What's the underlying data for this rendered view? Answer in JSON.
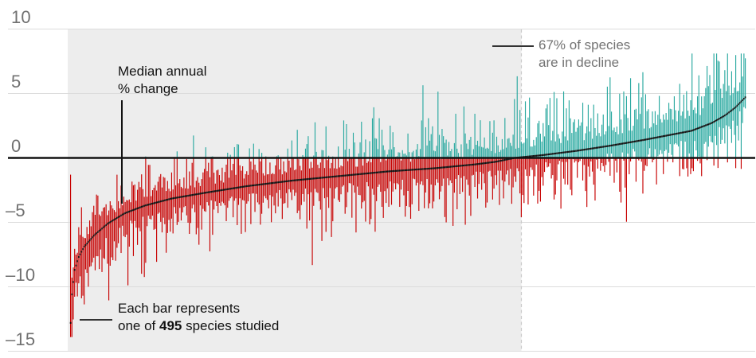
{
  "page": {
    "background": "#ffffff"
  },
  "chart_data": {
    "type": "bar",
    "n_species": 495,
    "pct_in_decline": 67,
    "y_range": [
      -15,
      10
    ],
    "y_ticks": [
      {
        "v": 10,
        "label": "10"
      },
      {
        "v": 5,
        "label": "5"
      },
      {
        "v": 0,
        "label": "0"
      },
      {
        "v": -5,
        "label": "–5"
      },
      {
        "v": -10,
        "label": "–10"
      },
      {
        "v": -15,
        "label": "–15"
      }
    ],
    "median_curve_keypoints": [
      [
        0.0,
        -12.8
      ],
      [
        0.002,
        -10.6
      ],
      [
        0.006,
        -8.7
      ],
      [
        0.012,
        -7.7
      ],
      [
        0.02,
        -6.9
      ],
      [
        0.035,
        -6.0
      ],
      [
        0.055,
        -5.1
      ],
      [
        0.08,
        -4.3
      ],
      [
        0.11,
        -3.7
      ],
      [
        0.15,
        -3.15
      ],
      [
        0.2,
        -2.7
      ],
      [
        0.26,
        -2.2
      ],
      [
        0.33,
        -1.75
      ],
      [
        0.4,
        -1.4
      ],
      [
        0.47,
        -1.05
      ],
      [
        0.54,
        -0.8
      ],
      [
        0.6,
        -0.5
      ],
      [
        0.63,
        -0.3
      ],
      [
        0.658,
        0.0
      ],
      [
        0.7,
        0.22
      ],
      [
        0.75,
        0.55
      ],
      [
        0.8,
        0.95
      ],
      [
        0.85,
        1.4
      ],
      [
        0.89,
        1.8
      ],
      [
        0.92,
        2.1
      ],
      [
        0.95,
        2.7
      ],
      [
        0.97,
        3.3
      ],
      [
        0.985,
        3.9
      ],
      [
        1.0,
        4.7
      ]
    ],
    "ci_width_profile": {
      "lower": [
        [
          0,
          1.55
        ],
        [
          0.04,
          1.4
        ],
        [
          0.12,
          1.15
        ],
        [
          0.3,
          1.0
        ],
        [
          0.6,
          0.95
        ],
        [
          0.85,
          0.9
        ],
        [
          1,
          1.05
        ]
      ],
      "upper": [
        [
          0,
          0.85
        ],
        [
          0.15,
          0.9
        ],
        [
          0.45,
          1.0
        ],
        [
          0.75,
          1.15
        ],
        [
          0.9,
          1.35
        ],
        [
          1,
          1.6
        ]
      ]
    },
    "first_species": {
      "median": -12.8,
      "lo": -13.9,
      "hi": -1.3
    },
    "extremes": {
      "max_bar_top": 8.1,
      "min_bar_bottom": -13.9
    },
    "colors": {
      "increase_teal": "#2aa9a0",
      "decline_red": "#c70000",
      "median_black": "#121212",
      "zero_line": "#121212",
      "gridline": "#dcdcdc",
      "shade": "#ededed",
      "dashed_divider": "#cbcbcb",
      "axis_text": "#717171",
      "annotation_gray": "#737373",
      "annotation_black": "#121212",
      "callout": "#333333"
    }
  },
  "annotations": {
    "median": {
      "line1": "Median annual",
      "line2": "% change"
    },
    "decline_share": {
      "line1": "67% of species",
      "line2": "are in decline"
    },
    "bar_explainer": {
      "line1": "Each bar represents",
      "line2_pre": "one of ",
      "line2_bold": "495",
      "line2_post": " species studied"
    }
  }
}
